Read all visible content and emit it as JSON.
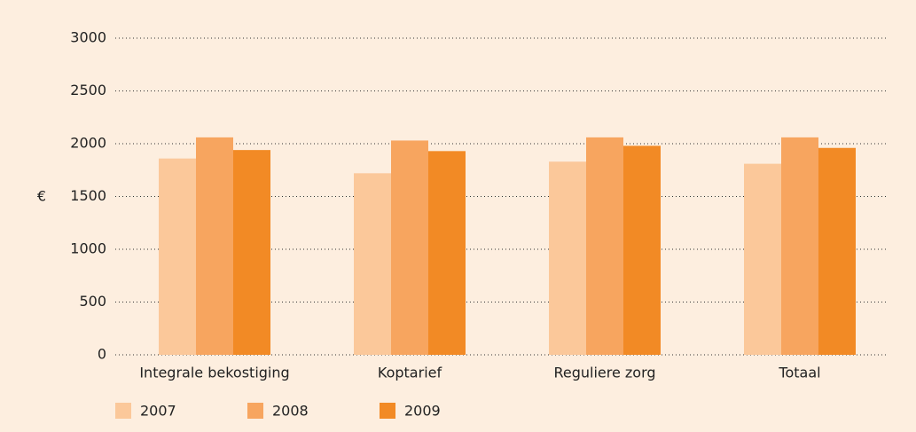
{
  "chart_data": {
    "type": "bar",
    "y_label": "€",
    "categories": [
      "Integrale bekostiging",
      "Koptarief",
      "Reguliere zorg",
      "Totaal"
    ],
    "series": [
      {
        "name": "2007",
        "color": "#fbc89a",
        "values": [
          1860,
          1720,
          1830,
          1810
        ]
      },
      {
        "name": "2008",
        "color": "#f7a55f",
        "values": [
          2060,
          2030,
          2060,
          2060
        ]
      },
      {
        "name": "2009",
        "color": "#f28a25",
        "values": [
          1940,
          1930,
          1980,
          1960
        ]
      }
    ],
    "ylim": [
      0,
      3000
    ],
    "yticks": [
      0,
      500,
      1000,
      1500,
      2000,
      2500,
      3000
    ],
    "grid": true
  }
}
